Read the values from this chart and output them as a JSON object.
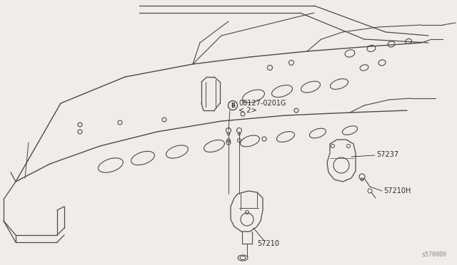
{
  "background_color": "#f0ede8",
  "line_color": "#4a4a4a",
  "text_color": "#2a2a2a",
  "ref_code": "s570000",
  "labels": {
    "bolt_label": "08127-0201G",
    "bolt_qty": "< 2>",
    "part1": "57237",
    "part2": "57210",
    "part3": "57210H"
  },
  "figsize": [
    6.4,
    3.72
  ],
  "dpi": 100
}
